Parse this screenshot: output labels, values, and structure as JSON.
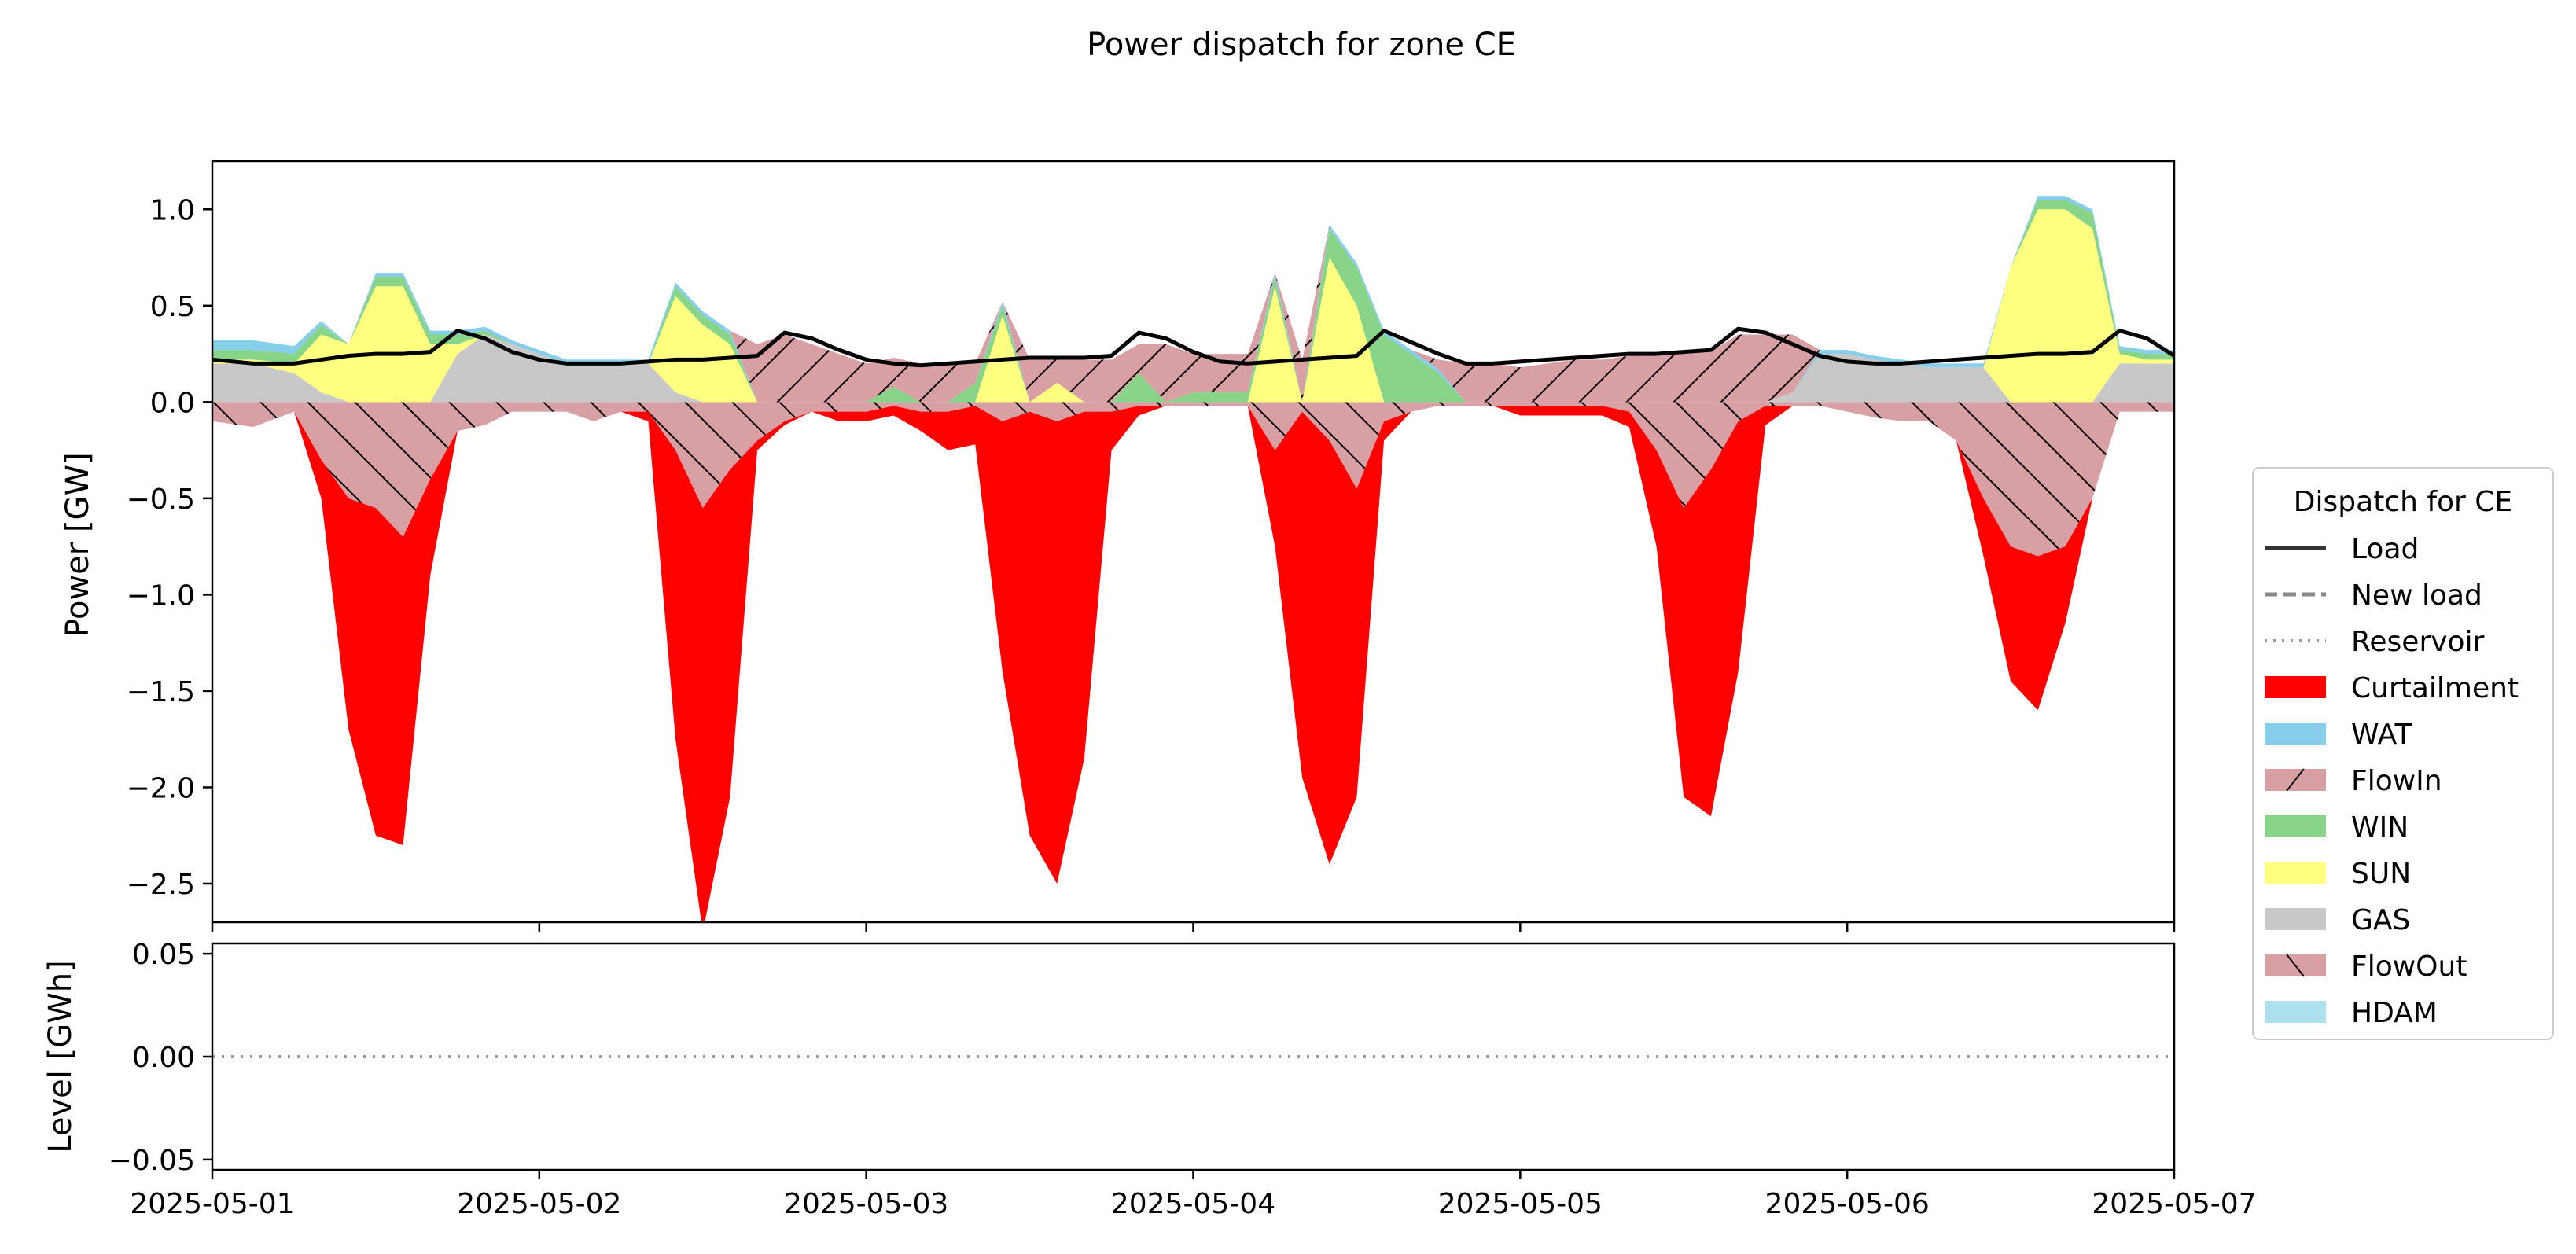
{
  "chart_data": [
    {
      "type": "area",
      "title": "Power dispatch for zone CE",
      "xlabel": "",
      "ylabel": "Power [GW]",
      "x_ticks": [
        "2025-05-01",
        "2025-05-02",
        "2025-05-03",
        "2025-05-04",
        "2025-05-05",
        "2025-05-06",
        "2025-05-07"
      ],
      "xlim": [
        0,
        144
      ],
      "ylim": [
        -2.7,
        1.25
      ],
      "y_ticks": [
        1.0,
        0.5,
        0.0,
        -0.5,
        -1.0,
        -1.5,
        -2.0,
        -2.5
      ],
      "y_tick_labels": [
        "1.0",
        "0.5",
        "0.0",
        "−0.5",
        "−1.0",
        "−1.5",
        "−2.0",
        "−2.5"
      ],
      "colors": {
        "load": "#000000",
        "curtailment": "#ff0000",
        "wat": "#87ceeb",
        "flowin": "#d8a0a4",
        "win": "#88d488",
        "sun": "#ffff80",
        "gas": "#c8c8c8",
        "flowout": "#d8a0a4",
        "hdam": "#aee0f0"
      },
      "positive_stack": {
        "x": [
          0,
          3,
          6,
          8,
          10,
          12,
          14,
          16,
          18,
          20,
          22,
          24,
          26,
          28,
          30,
          32,
          34,
          36,
          38,
          40,
          42,
          44,
          46,
          48,
          50,
          52,
          54,
          56,
          58,
          60,
          62,
          64,
          66,
          68,
          70,
          72,
          74,
          76,
          78,
          80,
          82,
          84,
          86,
          88,
          90,
          92,
          94,
          96,
          98,
          100,
          102,
          104,
          106,
          108,
          110,
          112,
          114,
          116,
          118,
          120,
          122,
          124,
          126,
          128,
          130,
          132,
          134,
          136,
          138,
          140,
          142,
          144
        ],
        "gas": [
          0.2,
          0.2,
          0.15,
          0.05,
          0.0,
          0.0,
          0.0,
          0.0,
          0.25,
          0.35,
          0.3,
          0.25,
          0.2,
          0.2,
          0.2,
          0.2,
          0.05,
          0.0,
          0.0,
          0.0,
          0.0,
          0.0,
          0.0,
          0.0,
          0.0,
          0.0,
          0.0,
          0.0,
          0.0,
          0.0,
          0.0,
          0.0,
          0.0,
          0.0,
          0.0,
          0.0,
          0.0,
          0.0,
          0.0,
          0.0,
          0.0,
          0.0,
          0.0,
          0.0,
          0.0,
          0.0,
          0.0,
          0.0,
          0.0,
          0.0,
          0.0,
          0.0,
          0.0,
          0.0,
          0.0,
          0.0,
          0.0,
          0.05,
          0.25,
          0.25,
          0.22,
          0.2,
          0.18,
          0.18,
          0.18,
          0.0,
          0.0,
          0.0,
          0.0,
          0.2,
          0.2,
          0.2
        ],
        "sun": [
          0.02,
          0.02,
          0.05,
          0.3,
          0.3,
          0.6,
          0.6,
          0.3,
          0.05,
          0.0,
          0.0,
          0.0,
          0.0,
          0.0,
          0.0,
          0.0,
          0.5,
          0.4,
          0.3,
          0.0,
          0.0,
          0.0,
          0.0,
          0.0,
          0.0,
          0.0,
          0.0,
          0.0,
          0.45,
          0.0,
          0.1,
          0.0,
          0.0,
          0.0,
          0.0,
          0.0,
          0.0,
          0.0,
          0.6,
          0.0,
          0.75,
          0.5,
          0.0,
          0.0,
          0.0,
          0.0,
          0.0,
          0.0,
          0.0,
          0.0,
          0.0,
          0.0,
          0.0,
          0.0,
          0.0,
          0.0,
          0.0,
          0.0,
          0.0,
          0.0,
          0.0,
          0.0,
          0.0,
          0.0,
          0.0,
          0.7,
          1.0,
          1.0,
          0.9,
          0.05,
          0.02,
          0.02
        ],
        "win": [
          0.05,
          0.05,
          0.05,
          0.05,
          0.0,
          0.05,
          0.05,
          0.05,
          0.05,
          0.02,
          0.0,
          0.0,
          0.0,
          0.0,
          0.0,
          0.0,
          0.05,
          0.05,
          0.05,
          0.0,
          0.0,
          0.0,
          0.0,
          0.0,
          0.08,
          0.0,
          0.0,
          0.1,
          0.05,
          0.0,
          0.0,
          0.0,
          0.0,
          0.15,
          0.0,
          0.05,
          0.05,
          0.05,
          0.05,
          0.0,
          0.15,
          0.2,
          0.35,
          0.25,
          0.15,
          0.0,
          0.0,
          0.0,
          0.0,
          0.0,
          0.0,
          0.0,
          0.0,
          0.0,
          0.0,
          0.0,
          0.0,
          0.0,
          0.0,
          0.0,
          0.0,
          0.0,
          0.0,
          0.0,
          0.0,
          0.0,
          0.05,
          0.05,
          0.08,
          0.02,
          0.03,
          0.03
        ],
        "wat": [
          0.05,
          0.05,
          0.04,
          0.02,
          0.0,
          0.02,
          0.02,
          0.02,
          0.02,
          0.02,
          0.02,
          0.02,
          0.02,
          0.02,
          0.02,
          0.02,
          0.02,
          0.02,
          0.02,
          0.0,
          0.0,
          0.0,
          0.0,
          0.0,
          0.0,
          0.0,
          0.0,
          0.0,
          0.02,
          0.0,
          0.0,
          0.0,
          0.0,
          0.0,
          0.0,
          0.0,
          0.0,
          0.0,
          0.02,
          0.0,
          0.02,
          0.02,
          0.02,
          0.02,
          0.02,
          0.0,
          0.0,
          0.0,
          0.0,
          0.0,
          0.0,
          0.0,
          0.0,
          0.0,
          0.0,
          0.0,
          0.0,
          0.0,
          0.02,
          0.02,
          0.02,
          0.02,
          0.02,
          0.02,
          0.02,
          0.0,
          0.02,
          0.02,
          0.02,
          0.02,
          0.02,
          0.02
        ],
        "flowin": [
          0.0,
          0.0,
          0.0,
          0.0,
          0.0,
          0.0,
          0.0,
          0.0,
          0.0,
          0.0,
          0.0,
          0.0,
          0.0,
          0.0,
          0.0,
          0.0,
          0.0,
          0.0,
          0.0,
          0.3,
          0.35,
          0.3,
          0.25,
          0.2,
          0.15,
          0.2,
          0.2,
          0.1,
          0.0,
          0.22,
          0.13,
          0.22,
          0.22,
          0.15,
          0.3,
          0.2,
          0.2,
          0.2,
          0.0,
          0.22,
          0.0,
          0.0,
          0.0,
          0.0,
          0.05,
          0.2,
          0.2,
          0.18,
          0.2,
          0.22,
          0.22,
          0.24,
          0.25,
          0.25,
          0.26,
          0.35,
          0.35,
          0.3,
          0.0,
          0.0,
          0.0,
          0.0,
          0.0,
          0.0,
          0.0,
          0.0,
          0.0,
          0.0,
          0.0,
          0.0,
          0.0,
          0.0
        ]
      },
      "flowout": {
        "x": [
          0,
          3,
          6,
          8,
          10,
          12,
          14,
          16,
          18,
          20,
          22,
          24,
          26,
          28,
          30,
          32,
          34,
          36,
          38,
          40,
          42,
          44,
          46,
          48,
          50,
          52,
          54,
          56,
          58,
          60,
          62,
          64,
          66,
          68,
          70,
          72,
          74,
          76,
          78,
          80,
          82,
          84,
          86,
          88,
          90,
          92,
          94,
          96,
          98,
          100,
          102,
          104,
          106,
          108,
          110,
          112,
          114,
          116,
          118,
          120,
          122,
          124,
          126,
          128,
          130,
          132,
          134,
          136,
          138,
          140,
          142,
          144
        ],
        "values": [
          -0.1,
          -0.13,
          -0.05,
          -0.3,
          -0.5,
          -0.55,
          -0.7,
          -0.4,
          -0.15,
          -0.12,
          -0.05,
          -0.05,
          -0.05,
          -0.1,
          -0.05,
          -0.05,
          -0.25,
          -0.55,
          -0.35,
          -0.2,
          -0.1,
          -0.05,
          -0.05,
          -0.05,
          -0.02,
          -0.05,
          -0.05,
          -0.02,
          -0.1,
          -0.05,
          -0.1,
          -0.05,
          -0.05,
          -0.02,
          -0.02,
          -0.02,
          -0.02,
          -0.02,
          -0.25,
          -0.05,
          -0.2,
          -0.45,
          -0.1,
          -0.05,
          -0.02,
          -0.02,
          -0.02,
          -0.02,
          -0.02,
          -0.02,
          -0.02,
          -0.05,
          -0.25,
          -0.55,
          -0.35,
          -0.1,
          -0.02,
          -0.02,
          -0.02,
          -0.05,
          -0.08,
          -0.1,
          -0.1,
          -0.2,
          -0.5,
          -0.75,
          -0.8,
          -0.75,
          -0.5,
          -0.05,
          -0.05,
          -0.05
        ]
      },
      "curtailment": {
        "x": [
          0,
          3,
          6,
          8,
          10,
          12,
          14,
          16,
          18,
          20,
          22,
          24,
          26,
          28,
          30,
          32,
          34,
          36,
          38,
          40,
          42,
          44,
          46,
          48,
          50,
          52,
          54,
          56,
          58,
          60,
          62,
          64,
          66,
          68,
          70,
          72,
          74,
          76,
          78,
          80,
          82,
          84,
          86,
          88,
          90,
          92,
          94,
          96,
          98,
          100,
          102,
          104,
          106,
          108,
          110,
          112,
          114,
          116,
          118,
          120,
          122,
          124,
          126,
          128,
          130,
          132,
          134,
          136,
          138,
          140,
          142,
          144
        ],
        "values": [
          0.0,
          0.0,
          0.0,
          -0.2,
          -1.2,
          -1.7,
          -1.6,
          -0.5,
          0.0,
          0.0,
          0.0,
          0.0,
          0.0,
          0.0,
          0.0,
          -0.05,
          -1.5,
          -2.2,
          -1.7,
          -0.05,
          -0.02,
          0.0,
          -0.05,
          -0.05,
          -0.05,
          -0.1,
          -0.2,
          -0.2,
          -1.3,
          -2.2,
          -2.4,
          -1.8,
          -0.2,
          -0.05,
          0.0,
          0.0,
          0.0,
          0.0,
          -0.5,
          -1.9,
          -2.2,
          -1.6,
          -0.1,
          0.0,
          0.0,
          0.0,
          0.0,
          -0.05,
          -0.05,
          -0.05,
          -0.05,
          -0.08,
          -0.5,
          -1.5,
          -1.8,
          -1.3,
          -0.1,
          0.0,
          0.0,
          0.0,
          0.0,
          0.0,
          0.0,
          0.0,
          -0.3,
          -0.7,
          -0.8,
          -0.4,
          0.0,
          0.0,
          0.0,
          0.0
        ]
      },
      "load": {
        "x": [
          0,
          3,
          6,
          8,
          10,
          12,
          14,
          16,
          18,
          20,
          22,
          24,
          26,
          28,
          30,
          32,
          34,
          36,
          38,
          40,
          42,
          44,
          46,
          48,
          50,
          52,
          54,
          56,
          58,
          60,
          62,
          64,
          66,
          68,
          70,
          72,
          74,
          76,
          78,
          80,
          82,
          84,
          86,
          88,
          90,
          92,
          94,
          96,
          98,
          100,
          102,
          104,
          106,
          108,
          110,
          112,
          114,
          116,
          118,
          120,
          122,
          124,
          126,
          128,
          130,
          132,
          134,
          136,
          138,
          140,
          142,
          144
        ],
        "values": [
          0.22,
          0.2,
          0.2,
          0.22,
          0.24,
          0.25,
          0.25,
          0.26,
          0.37,
          0.33,
          0.26,
          0.22,
          0.2,
          0.2,
          0.2,
          0.21,
          0.22,
          0.22,
          0.23,
          0.24,
          0.36,
          0.33,
          0.27,
          0.22,
          0.2,
          0.19,
          0.2,
          0.21,
          0.22,
          0.23,
          0.23,
          0.23,
          0.24,
          0.36,
          0.33,
          0.26,
          0.21,
          0.2,
          0.21,
          0.22,
          0.23,
          0.24,
          0.37,
          0.31,
          0.25,
          0.2,
          0.2,
          0.21,
          0.22,
          0.23,
          0.24,
          0.25,
          0.25,
          0.26,
          0.27,
          0.38,
          0.36,
          0.3,
          0.24,
          0.21,
          0.2,
          0.2,
          0.21,
          0.22,
          0.23,
          0.24,
          0.25,
          0.25,
          0.26,
          0.37,
          0.33,
          0.24
        ]
      },
      "legend": {
        "title": "Dispatch for CE",
        "placement": "right",
        "items": [
          {
            "label": "Load",
            "style": "line-solid",
            "color": "#333333"
          },
          {
            "label": "New load",
            "style": "line-dashed",
            "color": "#888888"
          },
          {
            "label": "Reservoir",
            "style": "line-dotted",
            "color": "#999999"
          },
          {
            "label": "Curtailment",
            "style": "patch",
            "color": "#ff0000"
          },
          {
            "label": "WAT",
            "style": "patch",
            "color": "#87ceeb"
          },
          {
            "label": "FlowIn",
            "style": "patch-hatch-fwd",
            "color": "#d8a0a4"
          },
          {
            "label": "WIN",
            "style": "patch",
            "color": "#88d488"
          },
          {
            "label": "SUN",
            "style": "patch",
            "color": "#ffff80"
          },
          {
            "label": "GAS",
            "style": "patch",
            "color": "#c8c8c8"
          },
          {
            "label": "FlowOut",
            "style": "patch-hatch-back",
            "color": "#d8a0a4"
          },
          {
            "label": "HDAM",
            "style": "patch",
            "color": "#aee0f0"
          }
        ]
      }
    },
    {
      "type": "line",
      "title": "",
      "xlabel": "",
      "ylabel": "Level [GWh]",
      "x_ticks": [
        "2025-05-01",
        "2025-05-02",
        "2025-05-03",
        "2025-05-04",
        "2025-05-05",
        "2025-05-06",
        "2025-05-07"
      ],
      "xlim": [
        0,
        144
      ],
      "ylim": [
        -0.055,
        0.055
      ],
      "y_ticks": [
        0.05,
        0.0,
        -0.05
      ],
      "y_tick_labels": [
        "0.05",
        "0.00",
        "−0.05"
      ],
      "series": [
        {
          "name": "Reservoir",
          "x": [
            0,
            144
          ],
          "values": [
            0.0,
            0.0
          ],
          "style": "dotted",
          "color": "#999999"
        }
      ]
    }
  ]
}
